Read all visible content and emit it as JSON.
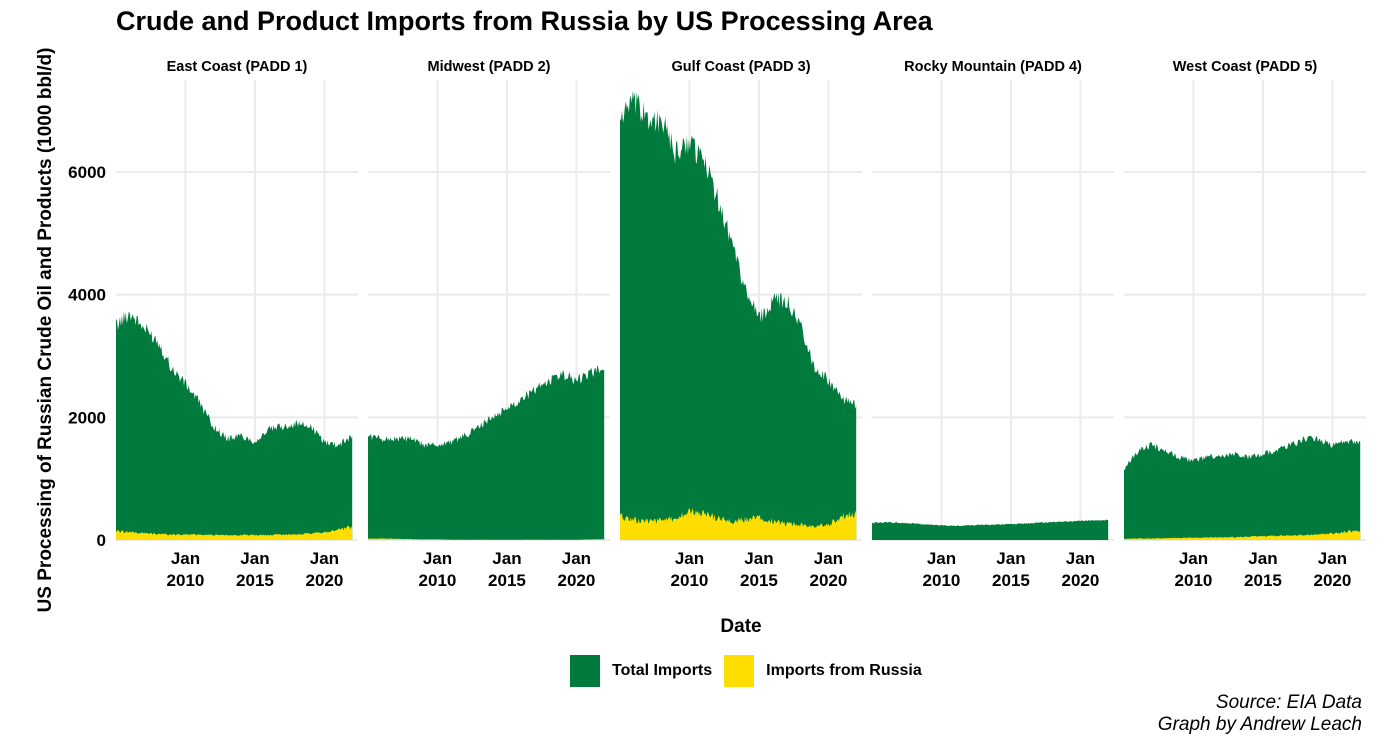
{
  "chart_data": {
    "type": "area",
    "title": "Crude and Product Imports from Russia by US Processing Area",
    "xlabel": "Date",
    "ylabel": "US Processing of Russian Crude Oil and Products (1000 bbl/d)",
    "ylim": [
      0,
      7500
    ],
    "yticks": [
      0,
      2000,
      4000,
      6000
    ],
    "xlim": [
      "2005-01",
      "2022-06"
    ],
    "xticks": [
      {
        "value": "2010-01",
        "label": [
          "Jan",
          "2010"
        ]
      },
      {
        "value": "2015-01",
        "label": [
          "Jan",
          "2015"
        ]
      },
      {
        "value": "2020-01",
        "label": [
          "Jan",
          "2020"
        ]
      }
    ],
    "grid": true,
    "legend_position": "bottom",
    "colors": {
      "total": "#007A3D",
      "russia": "#FEDD00"
    },
    "legend": [
      {
        "key": "total",
        "label": "Total Imports"
      },
      {
        "key": "russia",
        "label": "Imports from Russia"
      }
    ],
    "panels": [
      {
        "name": "East Coast (PADD 1)",
        "x": [
          "2005-01",
          "2006-01",
          "2007-01",
          "2008-01",
          "2009-01",
          "2010-01",
          "2011-01",
          "2012-01",
          "2013-01",
          "2014-01",
          "2015-01",
          "2016-01",
          "2017-01",
          "2018-01",
          "2019-01",
          "2020-01",
          "2021-01",
          "2022-01"
        ],
        "series": [
          {
            "key": "total",
            "values": [
              3500,
              3700,
              3450,
              3250,
              2800,
              2550,
              2250,
              1850,
              1650,
              1700,
              1600,
              1800,
              1850,
              1900,
              1850,
              1600,
              1550,
              1700
            ]
          },
          {
            "key": "russia",
            "values": [
              150,
              130,
              110,
              100,
              90,
              90,
              90,
              80,
              80,
              80,
              80,
              80,
              90,
              90,
              100,
              130,
              170,
              210
            ]
          }
        ]
      },
      {
        "name": "Midwest (PADD 2)",
        "x": [
          "2005-01",
          "2006-01",
          "2007-01",
          "2008-01",
          "2009-01",
          "2010-01",
          "2011-01",
          "2012-01",
          "2013-01",
          "2014-01",
          "2015-01",
          "2016-01",
          "2017-01",
          "2018-01",
          "2019-01",
          "2020-01",
          "2021-01",
          "2022-01"
        ],
        "series": [
          {
            "key": "total",
            "values": [
              1700,
              1650,
              1650,
              1650,
              1550,
              1550,
              1600,
              1700,
              1850,
              2000,
              2150,
              2300,
              2450,
              2600,
              2700,
              2600,
              2700,
              2850
            ]
          },
          {
            "key": "russia",
            "values": [
              20,
              25,
              20,
              15,
              10,
              10,
              5,
              5,
              5,
              5,
              5,
              5,
              5,
              5,
              5,
              5,
              10,
              15
            ]
          }
        ]
      },
      {
        "name": "Gulf Coast (PADD 3)",
        "x": [
          "2005-01",
          "2006-01",
          "2007-01",
          "2008-01",
          "2009-01",
          "2010-01",
          "2011-01",
          "2012-01",
          "2013-01",
          "2014-01",
          "2015-01",
          "2016-01",
          "2017-01",
          "2018-01",
          "2019-01",
          "2020-01",
          "2021-01",
          "2022-01"
        ],
        "series": [
          {
            "key": "total",
            "values": [
              6900,
              7100,
              6900,
              6800,
              6300,
              6500,
              6200,
              5600,
              4900,
              4100,
              3600,
              3900,
              3900,
              3500,
              2800,
              2600,
              2300,
              2200
            ]
          },
          {
            "key": "russia",
            "values": [
              380,
              330,
              300,
              310,
              350,
              460,
              430,
              360,
              300,
              330,
              370,
              300,
              250,
              260,
              230,
              250,
              380,
              420
            ]
          }
        ]
      },
      {
        "name": "Rocky Mountain (PADD 4)",
        "x": [
          "2005-01",
          "2006-01",
          "2007-01",
          "2008-01",
          "2009-01",
          "2010-01",
          "2011-01",
          "2012-01",
          "2013-01",
          "2014-01",
          "2015-01",
          "2016-01",
          "2017-01",
          "2018-01",
          "2019-01",
          "2020-01",
          "2021-01",
          "2022-01"
        ],
        "series": [
          {
            "key": "total",
            "values": [
              280,
              290,
              280,
              270,
              250,
              240,
              230,
              240,
              250,
              250,
              260,
              270,
              280,
              290,
              300,
              310,
              320,
              330
            ]
          },
          {
            "key": "russia",
            "values": [
              0,
              0,
              0,
              0,
              0,
              0,
              0,
              0,
              0,
              0,
              0,
              0,
              0,
              0,
              0,
              0,
              0,
              0
            ]
          }
        ]
      },
      {
        "name": "West Coast (PADD 5)",
        "x": [
          "2005-01",
          "2006-01",
          "2007-01",
          "2008-01",
          "2009-01",
          "2010-01",
          "2011-01",
          "2012-01",
          "2013-01",
          "2014-01",
          "2015-01",
          "2016-01",
          "2017-01",
          "2018-01",
          "2019-01",
          "2020-01",
          "2021-01",
          "2022-01"
        ],
        "series": [
          {
            "key": "total",
            "values": [
              1150,
              1450,
              1550,
              1450,
              1350,
              1300,
              1350,
              1350,
              1400,
              1350,
              1400,
              1450,
              1550,
              1650,
              1650,
              1550,
              1600,
              1600
            ]
          },
          {
            "key": "russia",
            "values": [
              20,
              25,
              25,
              30,
              35,
              40,
              40,
              45,
              45,
              55,
              60,
              70,
              75,
              80,
              90,
              110,
              140,
              150
            ]
          }
        ]
      }
    ]
  },
  "caption": {
    "source": "Source: EIA Data",
    "author": "Graph by Andrew Leach"
  }
}
